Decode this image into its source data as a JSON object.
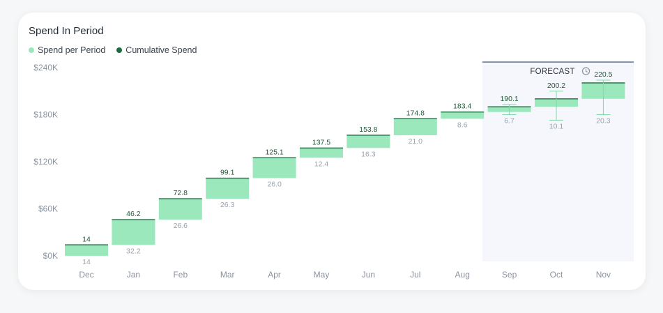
{
  "card": {
    "title": "Spend In Period"
  },
  "legend": [
    {
      "label": "Spend per Period",
      "color": "#9be8bd"
    },
    {
      "label": "Cumulative Spend",
      "color": "#1e6b3f"
    }
  ],
  "forecast": {
    "label": "FORECAST",
    "start_category": "Sep",
    "icon": "clock-icon"
  },
  "chart_data": {
    "type": "waterfall",
    "title": "Spend In Period",
    "y_ticks": [
      "$0K",
      "$60K",
      "$120K",
      "$180K",
      "$240K"
    ],
    "ylim": [
      0,
      240
    ],
    "y_unit": "K",
    "categories": [
      "Dec",
      "Jan",
      "Feb",
      "Mar",
      "Apr",
      "May",
      "Jun",
      "Jul",
      "Aug",
      "Sep",
      "Oct",
      "Nov"
    ],
    "series": [
      {
        "name": "Spend per Period",
        "values": [
          14,
          32.2,
          26.6,
          26.3,
          26.0,
          12.4,
          16.3,
          21.0,
          8.6,
          6.7,
          10.1,
          20.3
        ]
      },
      {
        "name": "Cumulative Spend",
        "values": [
          14,
          46.2,
          72.8,
          99.1,
          125.1,
          137.5,
          153.8,
          174.8,
          183.4,
          190.1,
          200.2,
          220.5
        ]
      }
    ],
    "value_labels": [
      "14",
      "46.2",
      "72.8",
      "99.1",
      "125.1",
      "137.5",
      "153.8",
      "174.8",
      "183.4",
      "190.1",
      "200.2",
      "220.5"
    ],
    "delta_labels": [
      "14",
      "32.2",
      "26.6",
      "26.3",
      "26.0",
      "12.4",
      "16.3",
      "21.0",
      "8.6",
      "6.7",
      "10.1",
      "20.3"
    ],
    "forecast_ranges": [
      null,
      null,
      null,
      null,
      null,
      null,
      null,
      null,
      null,
      {
        "low": 180,
        "high": 193
      },
      {
        "low": 173,
        "high": 210
      },
      {
        "low": 180,
        "high": 224
      }
    ],
    "colors": {
      "bar": "#9be8bd",
      "cumulative_line": "#1e6b3f",
      "forecast_bg": "#f5f7fc",
      "forecast_line": "#3c5a80"
    }
  }
}
